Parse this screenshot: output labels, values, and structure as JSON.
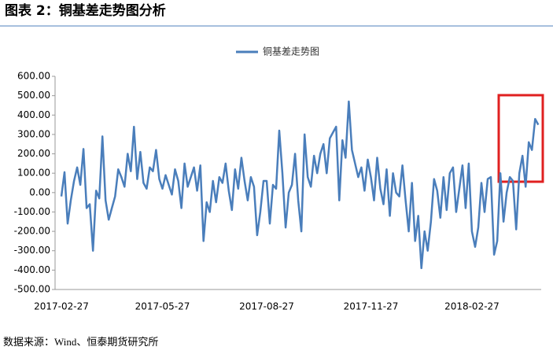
{
  "header": {
    "title": "图表 2：铜基差走势图分析"
  },
  "chart_data": {
    "type": "line",
    "categories": [
      "2017-02-27",
      null,
      null,
      null,
      null,
      null,
      null,
      null,
      null,
      null,
      null,
      null,
      null,
      null,
      null,
      null,
      null,
      null,
      null,
      null,
      null,
      null,
      null,
      null,
      null,
      null,
      null,
      null,
      null,
      null,
      null,
      null,
      "2017-05-27",
      null,
      null,
      null,
      null,
      null,
      null,
      null,
      null,
      null,
      null,
      null,
      null,
      null,
      null,
      null,
      null,
      null,
      null,
      null,
      null,
      null,
      null,
      null,
      null,
      null,
      null,
      null,
      null,
      null,
      null,
      null,
      null,
      "2017-08-27",
      null,
      null,
      null,
      null,
      null,
      null,
      null,
      null,
      null,
      null,
      null,
      null,
      null,
      null,
      null,
      null,
      null,
      null,
      null,
      null,
      null,
      null,
      null,
      null,
      null,
      null,
      null,
      null,
      null,
      null,
      null,
      null,
      "2017-11-27",
      null,
      null,
      null,
      null,
      null,
      null,
      null,
      null,
      null,
      null,
      null,
      null,
      null,
      null,
      null,
      null,
      null,
      null,
      null,
      null,
      null,
      null,
      null,
      null,
      null,
      null,
      null,
      null,
      null,
      null,
      null,
      "2018-02-27",
      null,
      null,
      null,
      null,
      null,
      null,
      null,
      null,
      null,
      null,
      null,
      null,
      null,
      null,
      null,
      null,
      null,
      null,
      null,
      null,
      null
    ],
    "series": [
      {
        "name": "铜基差走势图",
        "color": "#4a7ebb",
        "values": [
          -20,
          105,
          -160,
          -40,
          60,
          130,
          40,
          225,
          -80,
          -60,
          -300,
          10,
          -30,
          290,
          -40,
          -140,
          -80,
          -20,
          120,
          80,
          30,
          200,
          110,
          340,
          70,
          210,
          50,
          20,
          130,
          110,
          220,
          70,
          20,
          90,
          40,
          -10,
          120,
          60,
          -80,
          150,
          30,
          80,
          130,
          10,
          140,
          -250,
          -50,
          -100,
          60,
          -50,
          80,
          50,
          150,
          10,
          -90,
          120,
          20,
          180,
          60,
          -40,
          80,
          30,
          -220,
          -100,
          60,
          60,
          -160,
          40,
          20,
          320,
          100,
          -180,
          0,
          40,
          200,
          -40,
          -200,
          300,
          80,
          30,
          190,
          100,
          200,
          250,
          100,
          280,
          310,
          340,
          -40,
          270,
          180,
          470,
          220,
          150,
          80,
          130,
          10,
          170,
          80,
          -40,
          180,
          20,
          -60,
          120,
          -120,
          100,
          0,
          -20,
          140,
          -40,
          -200,
          50,
          -250,
          -120,
          -390,
          -200,
          -300,
          -150,
          70,
          10,
          -130,
          80,
          -90,
          100,
          130,
          -100,
          20,
          140,
          -80,
          150,
          -200,
          -280,
          -180,
          50,
          -100,
          70,
          80,
          -320,
          -250,
          100,
          -150,
          0,
          80,
          60,
          -190,
          100,
          190,
          30,
          260,
          220,
          380,
          350
        ]
      }
    ],
    "ylim": [
      -500,
      600
    ],
    "yticks": [
      {
        "value": -500,
        "label": "-500.00"
      },
      {
        "value": -400,
        "label": "-400.00"
      },
      {
        "value": -300,
        "label": "-300.00"
      },
      {
        "value": -200,
        "label": "-200.00"
      },
      {
        "value": -100,
        "label": "-100.00"
      },
      {
        "value": 0,
        "label": "0.00"
      },
      {
        "value": 100,
        "label": "100.00"
      },
      {
        "value": 200,
        "label": "200.00"
      },
      {
        "value": 300,
        "label": "300.00"
      },
      {
        "value": 400,
        "label": "400.00"
      },
      {
        "value": 500,
        "label": "500.00"
      },
      {
        "value": 600,
        "label": "600.00"
      }
    ],
    "legend": "top"
  },
  "source": "数据来源：Wind、恒泰期货研究所"
}
